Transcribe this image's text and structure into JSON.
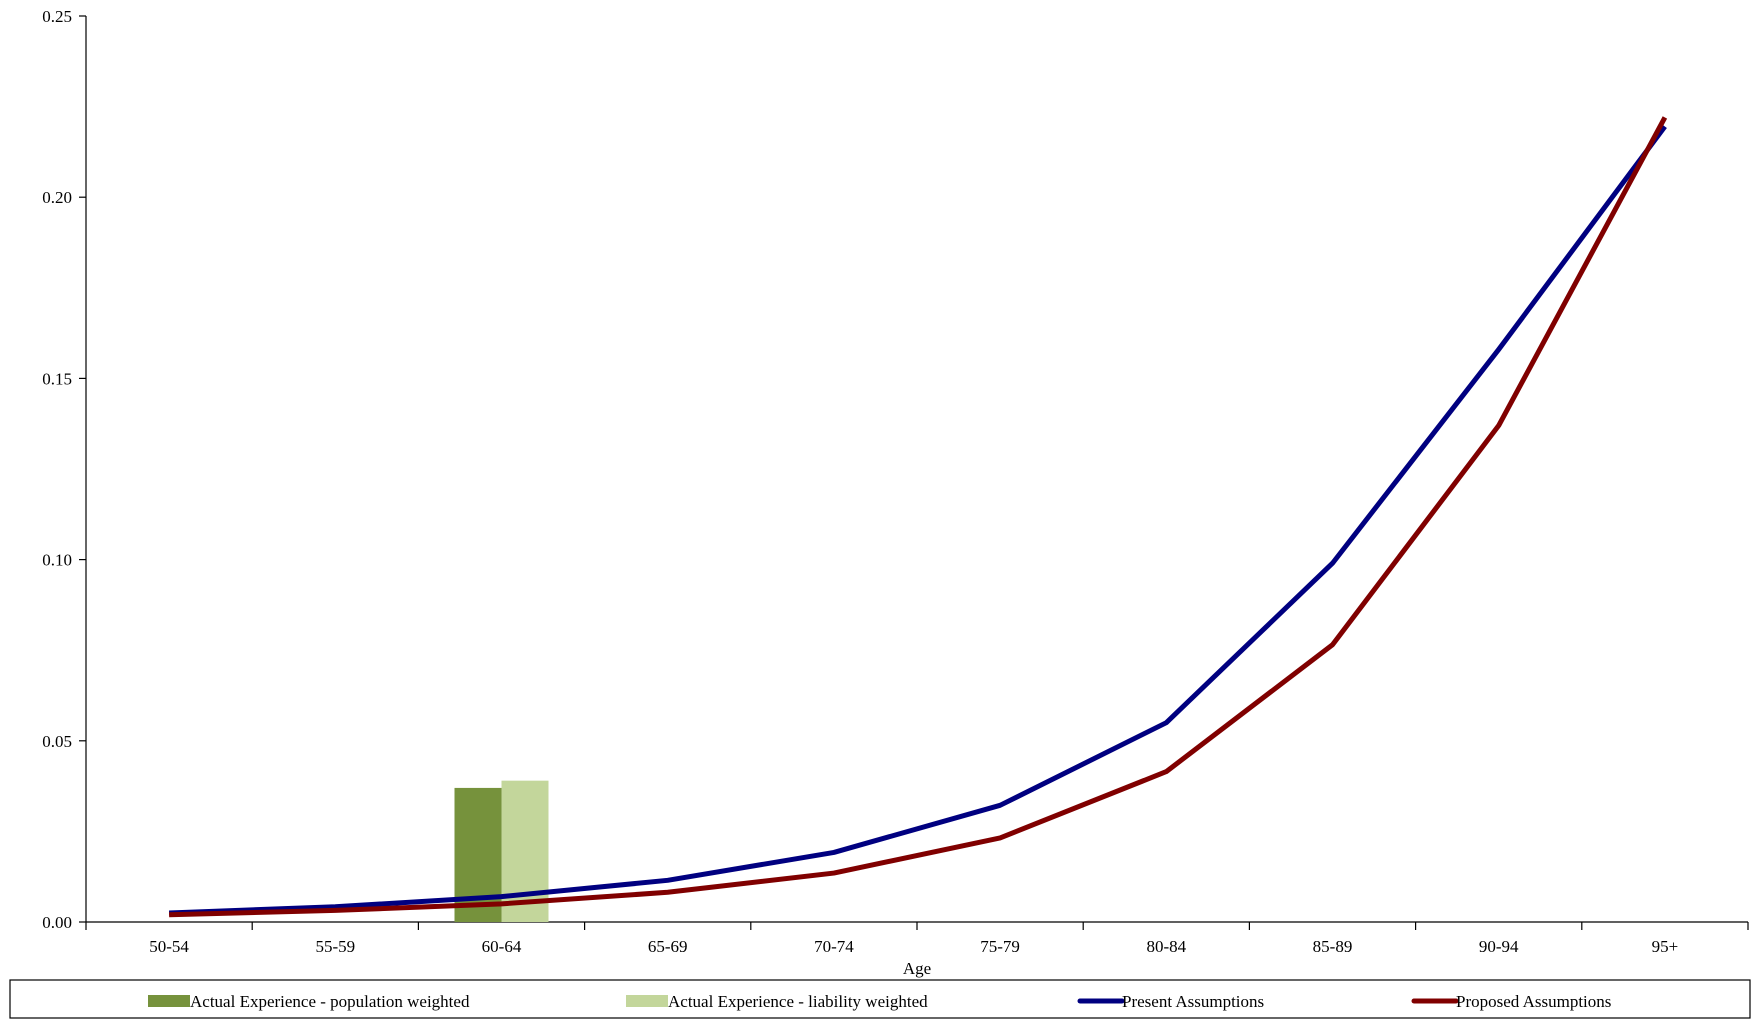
{
  "chart_data": {
    "type": "bar+line",
    "title": "",
    "xlabel": "Age",
    "ylabel": "",
    "categories": [
      "50-54",
      "55-59",
      "60-64",
      "65-69",
      "70-74",
      "75-79",
      "80-84",
      "85-89",
      "90-94",
      "95+"
    ],
    "ylim": [
      0,
      0.25
    ],
    "yticks": [
      "0.00",
      "0.05",
      "0.10",
      "0.15",
      "0.20",
      "0.25"
    ],
    "grid": false,
    "legend_position": "bottom",
    "series": [
      {
        "name": "Actual Experience - population weighted",
        "kind": "bar",
        "color": "#76923c",
        "values": [
          null,
          null,
          0.037,
          null,
          null,
          null,
          null,
          null,
          null,
          null
        ]
      },
      {
        "name": "Actual Experience - liability weighted",
        "kind": "bar",
        "color": "#c3d69b",
        "values": [
          null,
          null,
          0.039,
          null,
          null,
          null,
          null,
          null,
          null,
          null
        ]
      },
      {
        "name": "Present Assumptions",
        "kind": "line",
        "color": "#000080",
        "values": [
          0.0025,
          0.0042,
          0.007,
          0.0115,
          0.0192,
          0.0322,
          0.055,
          0.099,
          0.158,
          0.2195
        ]
      },
      {
        "name": "Proposed Assumptions",
        "kind": "line",
        "color": "#800000",
        "values": [
          0.002,
          0.0032,
          0.005,
          0.0082,
          0.0135,
          0.0232,
          0.0415,
          0.0765,
          0.137,
          0.222
        ]
      }
    ]
  }
}
